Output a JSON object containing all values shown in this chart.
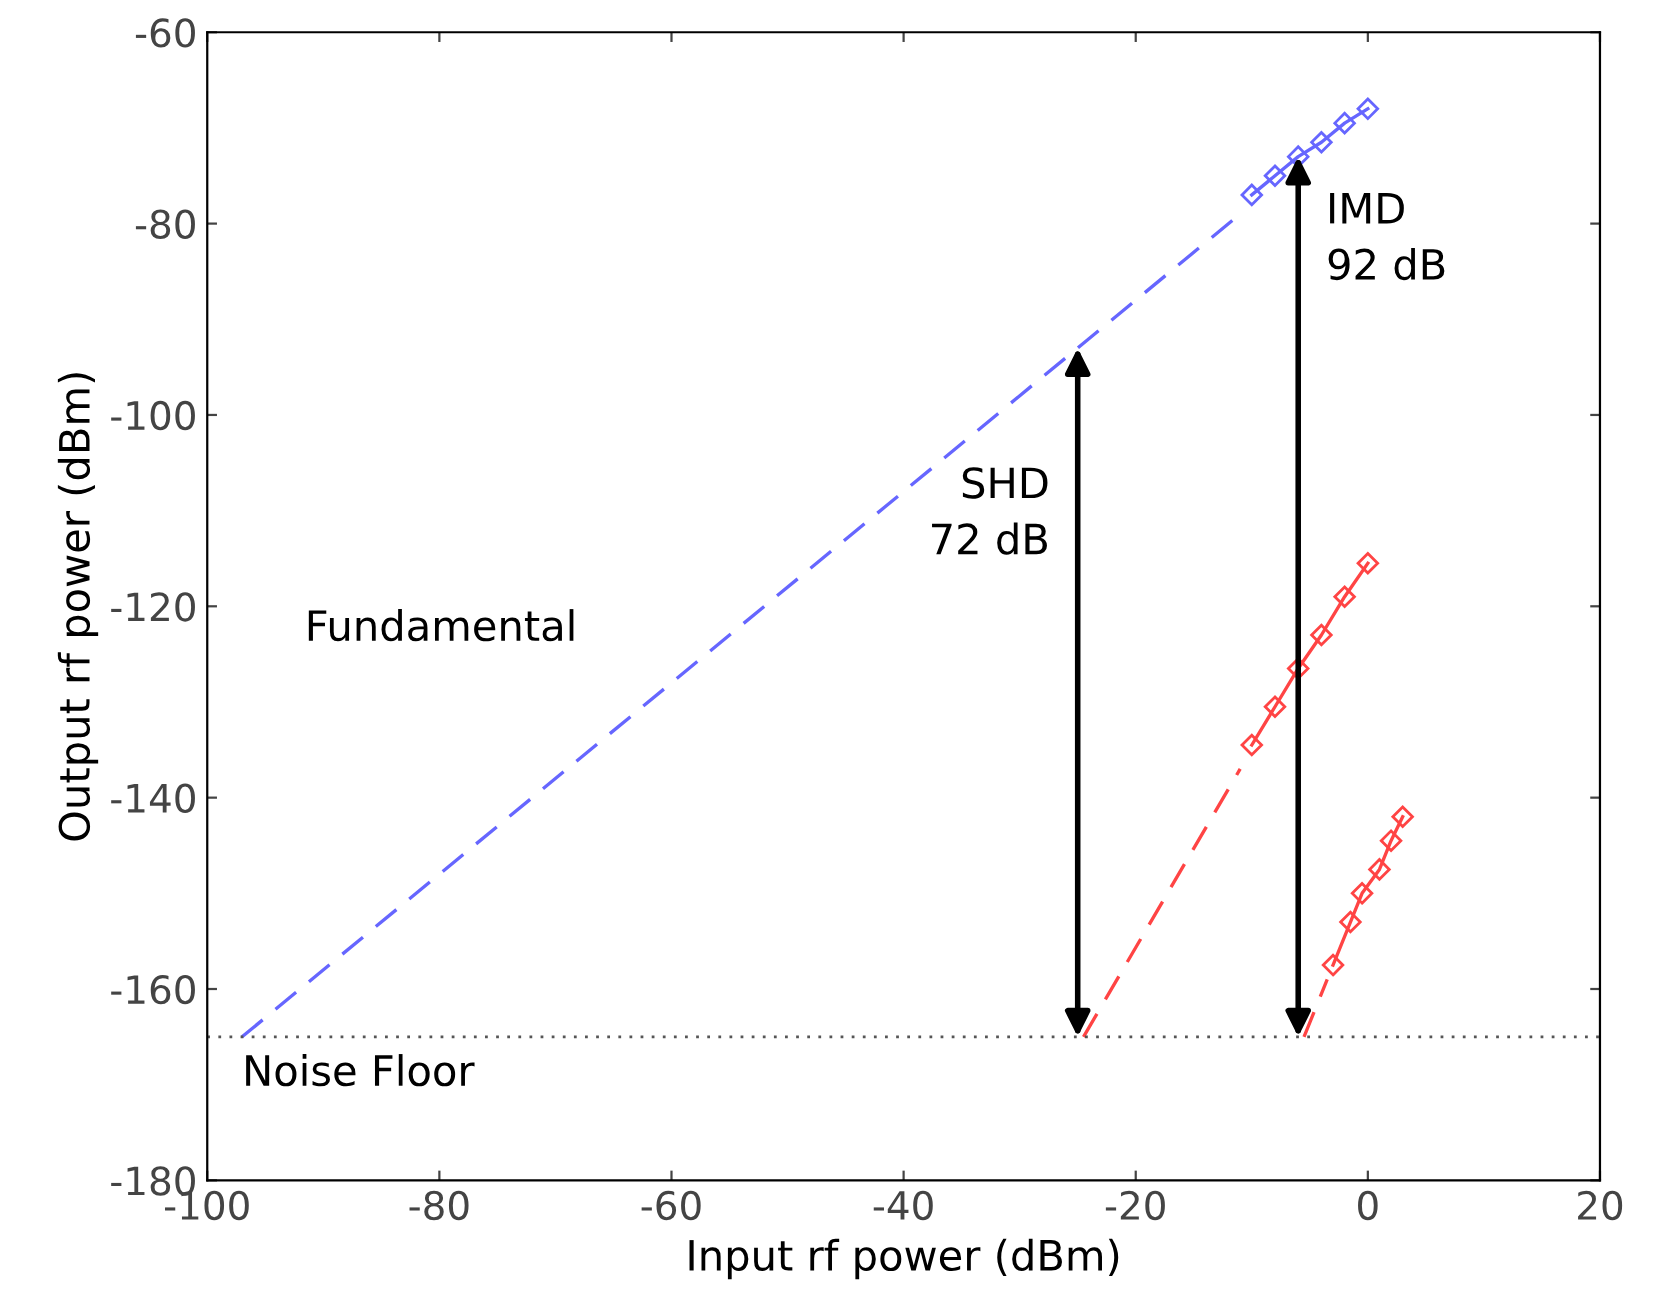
{
  "chart_data": {
    "type": "line",
    "xlabel": "Input rf power (dBm)",
    "ylabel": "Output rf power (dBm)",
    "xlim": [
      -100,
      20
    ],
    "ylim": [
      -180,
      -60
    ],
    "xticks": [
      -100,
      -80,
      -60,
      -40,
      -20,
      0,
      20
    ],
    "yticks": [
      -180,
      -160,
      -140,
      -120,
      -100,
      -80,
      -60
    ],
    "grid": false,
    "legend": false,
    "series": [
      {
        "color": "#6666ff",
        "line_style": "dashed",
        "marker": "none",
        "x": [
          -97,
          -11
        ],
        "values": [
          -165,
          -79
        ]
      },
      {
        "color": "#6666ff",
        "line_style": "solid",
        "marker": "diamond",
        "x": [
          -10,
          -8,
          -6,
          -4,
          -2,
          0
        ],
        "values": [
          -77,
          -75,
          -73,
          -71.5,
          -69.5,
          -68
        ]
      },
      {
        "color": "#ff4444",
        "line_style": "dashed",
        "marker": "none",
        "x": [
          -24.5,
          -11
        ],
        "values": [
          -165,
          -137
        ]
      },
      {
        "color": "#ff4444",
        "line_style": "solid",
        "marker": "diamond",
        "x": [
          -10,
          -8,
          -6,
          -4,
          -2,
          0
        ],
        "values": [
          -134.5,
          -130.5,
          -126.5,
          -123,
          -119,
          -115.5
        ]
      },
      {
        "color": "#ff4444",
        "line_style": "dashed",
        "marker": "none",
        "x": [
          -5.5,
          -3.5
        ],
        "values": [
          -165,
          -159
        ]
      },
      {
        "color": "#ff4444",
        "line_style": "solid",
        "marker": "diamond",
        "x": [
          -3,
          -1.5,
          -0.5,
          1,
          2,
          3
        ],
        "values": [
          -157.5,
          -153,
          -150,
          -147.5,
          -144.5,
          -142
        ]
      }
    ],
    "ref_lines": [
      {
        "axis": "y",
        "value": -165,
        "label": "Noise Floor",
        "color": "#555555",
        "line_style": "dotted"
      }
    ],
    "annotations": [
      "Fundamental",
      {
        "text": "SHD\n72 dB",
        "x": -25,
        "y": -93
      },
      {
        "text": "IMD\n92 dB",
        "x": -6,
        "y": -73
      }
    ]
  }
}
